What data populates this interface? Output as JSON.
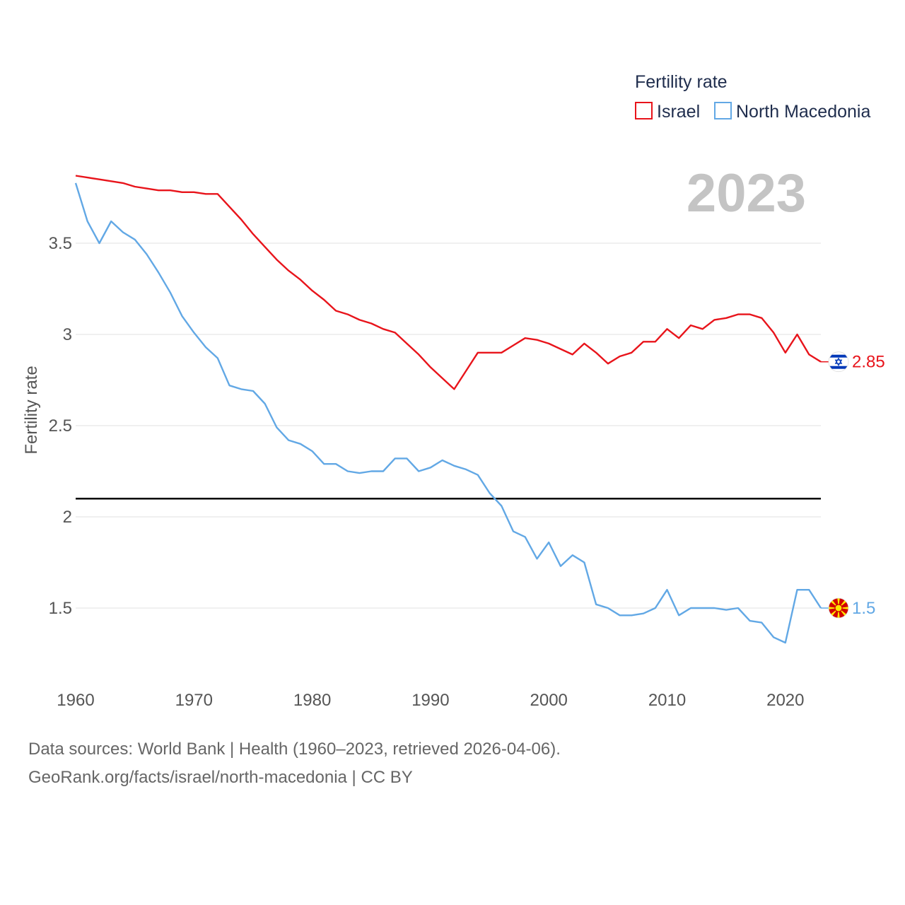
{
  "chart_data": {
    "type": "line",
    "title": "Fertility rate",
    "year_label": "2023",
    "xlabel": "",
    "ylabel": "Fertility rate",
    "xlim": [
      1960,
      2023
    ],
    "ylim": [
      1.1,
      3.95
    ],
    "x_ticks": [
      1960,
      1970,
      1980,
      1990,
      2000,
      2010,
      2020
    ],
    "y_ticks": [
      1.5,
      2,
      2.5,
      3,
      3.5
    ],
    "y_tick_labels": [
      "1.5",
      "2",
      "2.5",
      "3",
      "3.5"
    ],
    "grid": true,
    "legend_position": "top-right",
    "reference_line": {
      "value": 2.1,
      "color": "#000000"
    },
    "x": [
      1960,
      1961,
      1962,
      1963,
      1964,
      1965,
      1966,
      1967,
      1968,
      1969,
      1970,
      1971,
      1972,
      1973,
      1974,
      1975,
      1976,
      1977,
      1978,
      1979,
      1980,
      1981,
      1982,
      1983,
      1984,
      1985,
      1986,
      1987,
      1988,
      1989,
      1990,
      1991,
      1992,
      1993,
      1994,
      1995,
      1996,
      1997,
      1998,
      1999,
      2000,
      2001,
      2002,
      2003,
      2004,
      2005,
      2006,
      2007,
      2008,
      2009,
      2010,
      2011,
      2012,
      2013,
      2014,
      2015,
      2016,
      2017,
      2018,
      2019,
      2020,
      2021,
      2022,
      2023
    ],
    "series": [
      {
        "name": "Israel",
        "color": "#e8141b",
        "flag": "israel-flag",
        "end_label": "2.85",
        "values": [
          3.87,
          3.86,
          3.85,
          3.84,
          3.83,
          3.81,
          3.8,
          3.79,
          3.79,
          3.78,
          3.78,
          3.77,
          3.77,
          3.7,
          3.63,
          3.55,
          3.48,
          3.41,
          3.35,
          3.3,
          3.24,
          3.19,
          3.13,
          3.11,
          3.08,
          3.06,
          3.03,
          3.01,
          2.95,
          2.89,
          2.82,
          2.76,
          2.7,
          2.8,
          2.9,
          2.9,
          2.9,
          2.94,
          2.98,
          2.97,
          2.95,
          2.92,
          2.89,
          2.95,
          2.9,
          2.84,
          2.88,
          2.9,
          2.96,
          2.96,
          3.03,
          2.98,
          3.05,
          3.03,
          3.08,
          3.09,
          3.11,
          3.11,
          3.09,
          3.01,
          2.9,
          3.0,
          2.89,
          2.85
        ]
      },
      {
        "name": "North Macedonia",
        "color": "#62a8e5",
        "flag": "north-macedonia-flag",
        "end_label": "1.5",
        "values": [
          3.83,
          3.62,
          3.5,
          3.62,
          3.56,
          3.52,
          3.44,
          3.34,
          3.23,
          3.1,
          3.01,
          2.93,
          2.87,
          2.72,
          2.7,
          2.69,
          2.62,
          2.49,
          2.42,
          2.4,
          2.36,
          2.29,
          2.29,
          2.25,
          2.24,
          2.25,
          2.25,
          2.32,
          2.32,
          2.25,
          2.27,
          2.31,
          2.28,
          2.26,
          2.23,
          2.13,
          2.06,
          1.92,
          1.89,
          1.77,
          1.86,
          1.73,
          1.79,
          1.75,
          1.52,
          1.5,
          1.46,
          1.46,
          1.47,
          1.5,
          1.6,
          1.46,
          1.5,
          1.5,
          1.5,
          1.49,
          1.5,
          1.43,
          1.42,
          1.34,
          1.31,
          1.6,
          1.6,
          1.5
        ]
      }
    ]
  },
  "footer": {
    "line1": "Data sources: World Bank | Health (1960–2023, retrieved 2026-04-06).",
    "line2": "GeoRank.org/facts/israel/north-macedonia | CC BY"
  }
}
